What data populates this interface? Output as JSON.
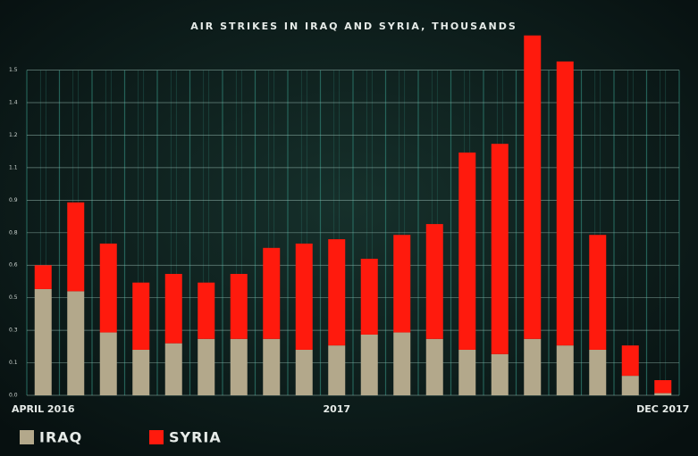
{
  "chart_data": {
    "type": "stacked-bar",
    "title": "AIR STRIKES IN IRAQ AND SYRIA, THOUSANDS",
    "categories": [
      "APRIL 2016",
      null,
      null,
      null,
      null,
      null,
      null,
      null,
      null,
      "2017",
      null,
      null,
      null,
      null,
      null,
      null,
      null,
      null,
      null,
      "DEC 2017"
    ],
    "series": [
      {
        "name": "IRAQ",
        "color": "#b3a88b",
        "values": [
          0.49,
          0.48,
          0.29,
          0.21,
          0.24,
          0.26,
          0.26,
          0.26,
          0.21,
          0.23,
          0.28,
          0.29,
          0.26,
          0.21,
          0.19,
          0.26,
          0.23,
          0.21,
          0.09,
          0.01
        ]
      },
      {
        "name": "SYRIA",
        "color": "#ff1a0d",
        "values": [
          0.11,
          0.41,
          0.41,
          0.31,
          0.32,
          0.26,
          0.3,
          0.42,
          0.49,
          0.49,
          0.35,
          0.45,
          0.53,
          0.91,
          0.97,
          1.4,
          1.31,
          0.53,
          0.14,
          0.06
        ]
      }
    ],
    "ylim": [
      0,
      1.7
    ],
    "yticks": [
      {
        "value": 0,
        "label": "0.0"
      },
      {
        "value": 0.15,
        "label": "0.1"
      },
      {
        "value": 0.3,
        "label": "0.3"
      },
      {
        "value": 0.45,
        "label": "0.5"
      },
      {
        "value": 0.6,
        "label": "0.6"
      },
      {
        "value": 0.75,
        "label": "0.8"
      },
      {
        "value": 0.9,
        "label": "0.9"
      },
      {
        "value": 1.05,
        "label": "1.1"
      },
      {
        "value": 1.2,
        "label": "1.2"
      },
      {
        "value": 1.35,
        "label": "1.4"
      },
      {
        "value": 1.5,
        "label": "1.5"
      }
    ],
    "grid": true
  }
}
